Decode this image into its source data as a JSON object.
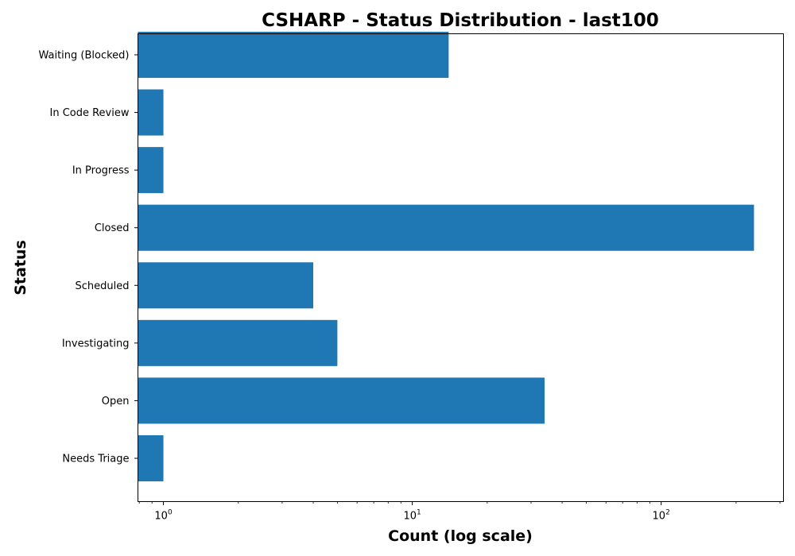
{
  "chart_data": {
    "type": "bar",
    "orientation": "horizontal",
    "title": "CSHARP - Status Distribution - last100",
    "xlabel": "Count (log scale)",
    "ylabel": "Status",
    "xscale": "log",
    "xlim": [
      0.79,
      310
    ],
    "xticks": [
      {
        "base": "10",
        "exp": "0",
        "value": 1
      },
      {
        "base": "10",
        "exp": "1",
        "value": 10
      },
      {
        "base": "10",
        "exp": "2",
        "value": 100
      }
    ],
    "categories": [
      "Needs Triage",
      "Open",
      "Investigating",
      "Scheduled",
      "Closed",
      "In Progress",
      "In Code Review",
      "Waiting (Blocked)"
    ],
    "values": [
      1,
      34,
      5,
      4,
      236,
      1,
      1,
      14
    ],
    "color": "#1f77b4",
    "grid": false,
    "legend": false
  }
}
